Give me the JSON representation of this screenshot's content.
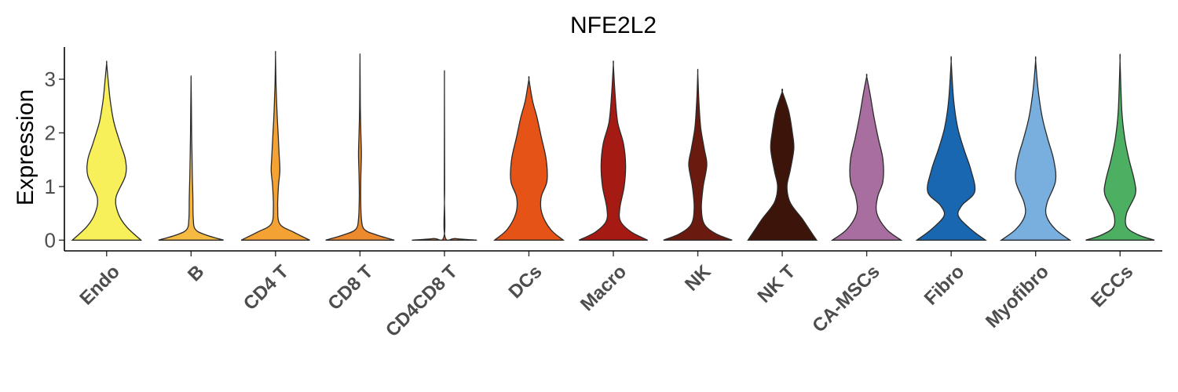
{
  "chart_data": {
    "type": "violin",
    "title": "NFE2L2",
    "xlabel": "",
    "ylabel": "Expression",
    "ylim": [
      -0.2,
      3.6
    ],
    "yticks": [
      0,
      1,
      2,
      3
    ],
    "grid": false,
    "legend": "none",
    "categories": [
      {
        "name": "Endo",
        "color": "#F8F05A",
        "max": 3.3,
        "profile": [
          [
            0,
            0.95
          ],
          [
            0.25,
            0.55
          ],
          [
            0.5,
            0.32
          ],
          [
            0.8,
            0.26
          ],
          [
            1.2,
            0.52
          ],
          [
            1.5,
            0.52
          ],
          [
            1.8,
            0.38
          ],
          [
            2.2,
            0.2
          ],
          [
            2.6,
            0.1
          ],
          [
            3.0,
            0.04
          ],
          [
            3.3,
            0
          ]
        ]
      },
      {
        "name": "B",
        "color": "#F6B942",
        "max": 3.0,
        "profile": [
          [
            0,
            0.9
          ],
          [
            0.1,
            0.4
          ],
          [
            0.2,
            0.12
          ],
          [
            0.4,
            0.06
          ],
          [
            0.8,
            0.05
          ],
          [
            1.2,
            0.035
          ],
          [
            1.6,
            0.025
          ],
          [
            2.0,
            0.015
          ],
          [
            2.5,
            0.008
          ],
          [
            3.0,
            0
          ]
        ]
      },
      {
        "name": "CD4 T",
        "color": "#F4A233",
        "max": 3.45,
        "profile": [
          [
            0,
            0.95
          ],
          [
            0.15,
            0.5
          ],
          [
            0.3,
            0.12
          ],
          [
            0.6,
            0.06
          ],
          [
            1.0,
            0.08
          ],
          [
            1.3,
            0.12
          ],
          [
            1.6,
            0.1
          ],
          [
            2.0,
            0.07
          ],
          [
            2.4,
            0.04
          ],
          [
            2.9,
            0.015
          ],
          [
            3.45,
            0
          ]
        ]
      },
      {
        "name": "CD8 T",
        "color": "#EE8A2E",
        "max": 3.42,
        "profile": [
          [
            0,
            0.95
          ],
          [
            0.1,
            0.45
          ],
          [
            0.2,
            0.12
          ],
          [
            0.4,
            0.04
          ],
          [
            0.8,
            0.02
          ],
          [
            1.2,
            0.025
          ],
          [
            1.6,
            0.04
          ],
          [
            2.0,
            0.025
          ],
          [
            2.5,
            0.01
          ],
          [
            3.0,
            0.005
          ],
          [
            3.42,
            0
          ]
        ]
      },
      {
        "name": "CD4CD8 T",
        "color": "#E7651F",
        "max": 2.92,
        "profile": [
          [
            0,
            0.9
          ],
          [
            0.03,
            0.3
          ],
          [
            0.08,
            0.01
          ],
          [
            1.0,
            0.005
          ],
          [
            2.92,
            0
          ]
        ]
      },
      {
        "name": "DCs",
        "color": "#E55317",
        "max": 3.0,
        "profile": [
          [
            0,
            0.95
          ],
          [
            0.2,
            0.6
          ],
          [
            0.5,
            0.36
          ],
          [
            0.8,
            0.34
          ],
          [
            1.1,
            0.5
          ],
          [
            1.5,
            0.48
          ],
          [
            1.9,
            0.35
          ],
          [
            2.3,
            0.22
          ],
          [
            2.6,
            0.1
          ],
          [
            3.0,
            0
          ]
        ]
      },
      {
        "name": "Macro",
        "color": "#A51B13",
        "max": 3.27,
        "profile": [
          [
            0,
            0.95
          ],
          [
            0.15,
            0.5
          ],
          [
            0.35,
            0.2
          ],
          [
            0.6,
            0.18
          ],
          [
            1.0,
            0.3
          ],
          [
            1.4,
            0.34
          ],
          [
            1.8,
            0.28
          ],
          [
            2.2,
            0.12
          ],
          [
            2.7,
            0.05
          ],
          [
            3.27,
            0
          ]
        ]
      },
      {
        "name": "NK",
        "color": "#6B1A0F",
        "max": 3.12,
        "profile": [
          [
            0,
            0.95
          ],
          [
            0.12,
            0.5
          ],
          [
            0.3,
            0.18
          ],
          [
            0.6,
            0.1
          ],
          [
            1.0,
            0.15
          ],
          [
            1.4,
            0.25
          ],
          [
            1.7,
            0.18
          ],
          [
            2.1,
            0.08
          ],
          [
            2.6,
            0.03
          ],
          [
            3.12,
            0
          ]
        ]
      },
      {
        "name": "NK T",
        "color": "#3D1409",
        "max": 2.77,
        "profile": [
          [
            0,
            0.95
          ],
          [
            0.2,
            0.75
          ],
          [
            0.4,
            0.55
          ],
          [
            0.7,
            0.22
          ],
          [
            1.0,
            0.13
          ],
          [
            1.3,
            0.22
          ],
          [
            1.7,
            0.32
          ],
          [
            2.0,
            0.28
          ],
          [
            2.4,
            0.18
          ],
          [
            2.77,
            0
          ]
        ]
      },
      {
        "name": "CA-MSCs",
        "color": "#A86E9F",
        "max": 3.05,
        "profile": [
          [
            0,
            0.95
          ],
          [
            0.2,
            0.55
          ],
          [
            0.5,
            0.28
          ],
          [
            0.8,
            0.3
          ],
          [
            1.1,
            0.45
          ],
          [
            1.5,
            0.45
          ],
          [
            1.9,
            0.32
          ],
          [
            2.3,
            0.2
          ],
          [
            2.7,
            0.1
          ],
          [
            3.05,
            0
          ]
        ]
      },
      {
        "name": "Fibro",
        "color": "#1967B1",
        "max": 3.33,
        "profile": [
          [
            0,
            0.95
          ],
          [
            0.2,
            0.55
          ],
          [
            0.45,
            0.2
          ],
          [
            0.65,
            0.3
          ],
          [
            0.9,
            0.65
          ],
          [
            1.3,
            0.55
          ],
          [
            1.7,
            0.35
          ],
          [
            2.1,
            0.18
          ],
          [
            2.6,
            0.07
          ],
          [
            3.33,
            0
          ]
        ]
      },
      {
        "name": "Myofibro",
        "color": "#79AFDE",
        "max": 3.35,
        "profile": [
          [
            0,
            0.95
          ],
          [
            0.2,
            0.55
          ],
          [
            0.45,
            0.3
          ],
          [
            0.7,
            0.32
          ],
          [
            1.1,
            0.55
          ],
          [
            1.5,
            0.5
          ],
          [
            1.9,
            0.33
          ],
          [
            2.3,
            0.18
          ],
          [
            2.8,
            0.07
          ],
          [
            3.35,
            0
          ]
        ]
      },
      {
        "name": "ECCs",
        "color": "#4CAF62",
        "max": 3.35,
        "profile": [
          [
            0,
            0.95
          ],
          [
            0.1,
            0.5
          ],
          [
            0.25,
            0.18
          ],
          [
            0.5,
            0.18
          ],
          [
            0.85,
            0.42
          ],
          [
            1.1,
            0.4
          ],
          [
            1.5,
            0.25
          ],
          [
            1.9,
            0.13
          ],
          [
            2.4,
            0.05
          ],
          [
            3.35,
            0
          ]
        ]
      }
    ]
  }
}
